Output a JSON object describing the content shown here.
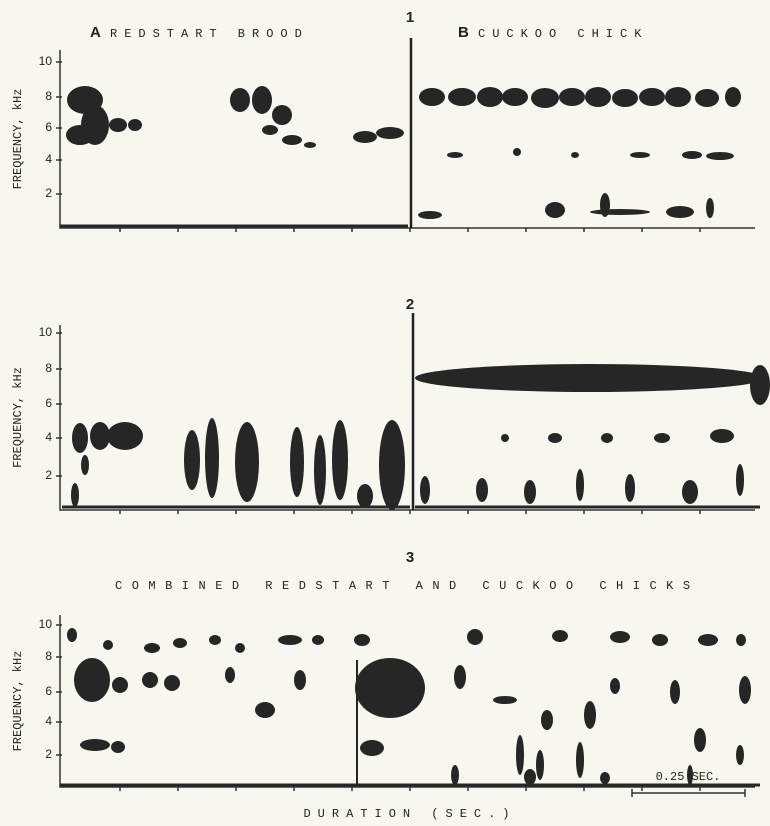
{
  "figure": {
    "panels": [
      {
        "number": "1",
        "y_label": "FREQUENCY, kHz",
        "y_ticks": [
          10,
          8,
          6,
          4,
          2
        ],
        "left_letter": "A",
        "left_title": "REDSTART BROOD",
        "right_letter": "B",
        "right_title": "CUCKOO CHICK"
      },
      {
        "number": "2",
        "y_label": "FREQUENCY, kHz",
        "y_ticks": [
          10,
          8,
          6,
          4,
          2
        ]
      },
      {
        "number": "3",
        "title": "COMBINED REDSTART AND CUCKOO CHICKS",
        "y_label": "FREQUENCY, kHz",
        "y_ticks": [
          10,
          8,
          6,
          4,
          2
        ]
      }
    ],
    "x_label": "DURATION (SEC.)",
    "scale_bar": "0.25 SEC."
  }
}
